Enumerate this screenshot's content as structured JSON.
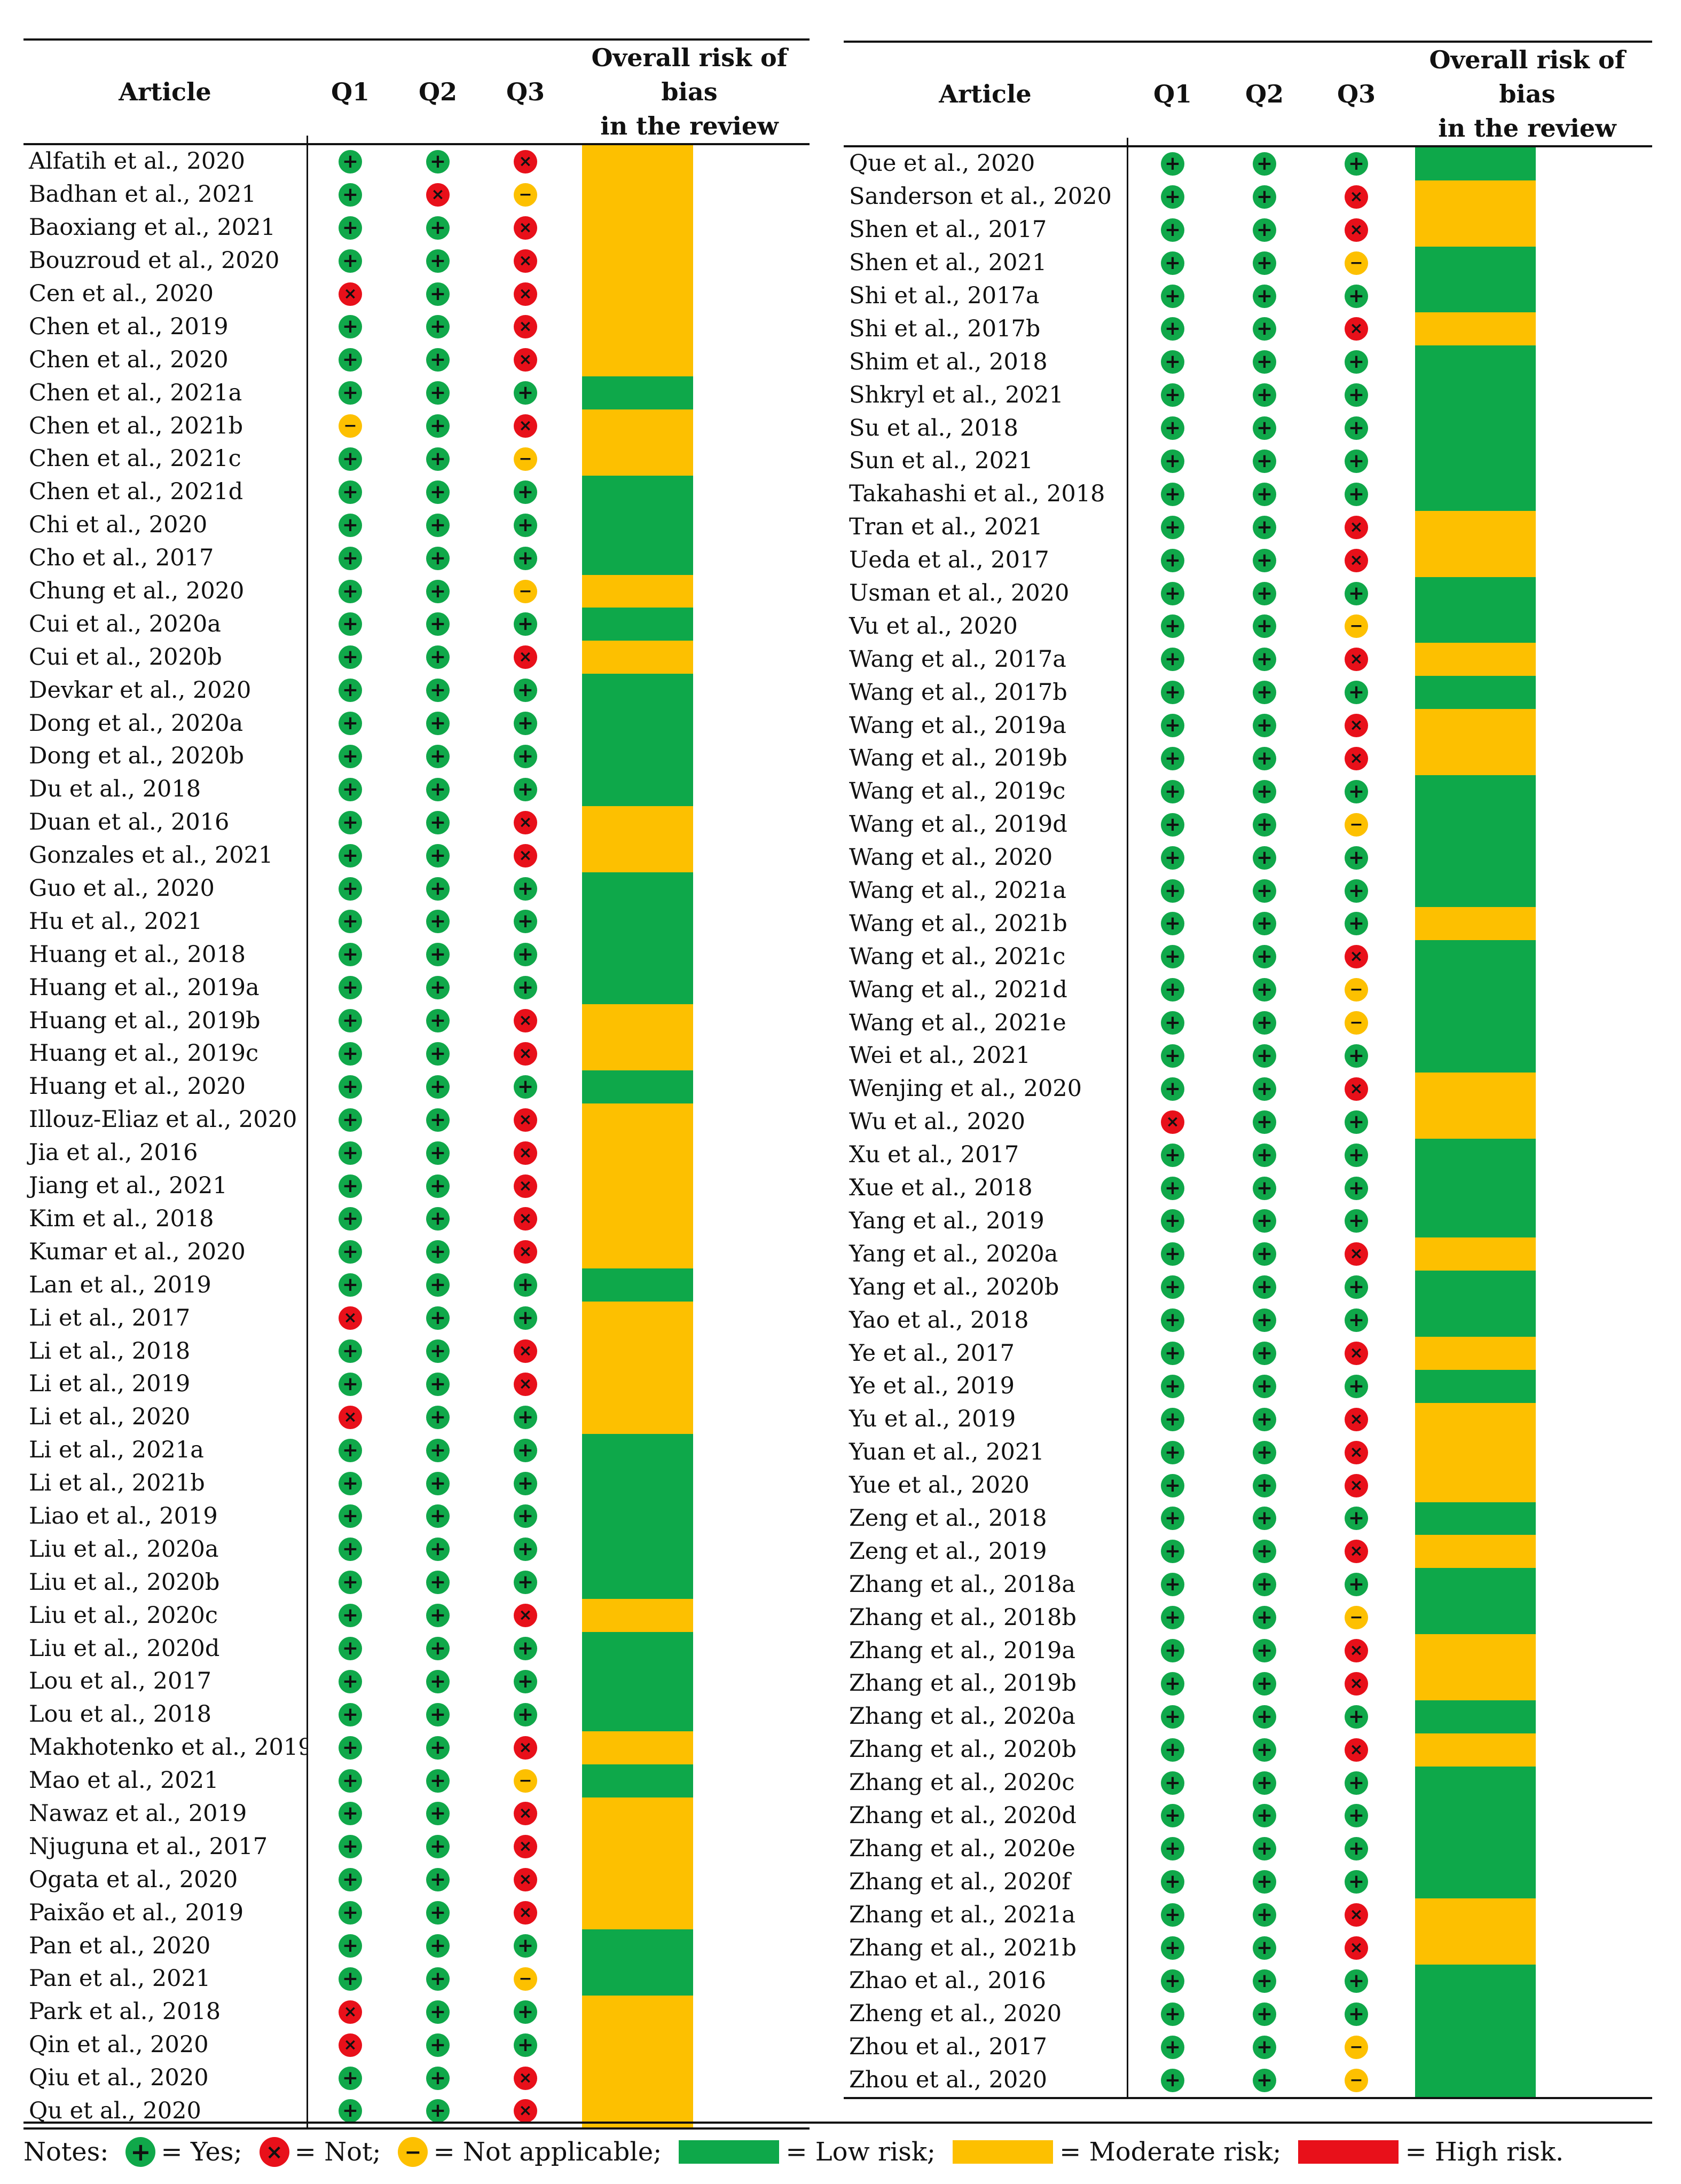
{
  "headers": {
    "article": "Article",
    "q1": "Q1",
    "q2": "Q2",
    "q3": "Q3",
    "overall_line1": "Overall risk of bias",
    "overall_line2": "in the review"
  },
  "legend": {
    "notes_label": "Notes:",
    "yes_label": "= Yes;",
    "not_label": "= Not;",
    "na_label": "= Not applicable;",
    "low_label": "= Low risk;",
    "moderate_label": "= Moderate risk;",
    "high_label": "= High risk."
  },
  "colors": {
    "yes": "#10a84a",
    "not": "#e8101a",
    "na": "#fdc000",
    "low": "#0ea84a",
    "moderate": "#fdc000",
    "high": "#e8101a"
  },
  "left_rows": [
    [
      "Alfatih et al., 2020",
      "yes",
      "yes",
      "not",
      "moderate"
    ],
    [
      "Badhan et al., 2021",
      "yes",
      "not",
      "na",
      "moderate"
    ],
    [
      "Baoxiang et al., 2021",
      "yes",
      "yes",
      "not",
      "moderate"
    ],
    [
      "Bouzroud et al., 2020",
      "yes",
      "yes",
      "not",
      "moderate"
    ],
    [
      "Cen et al., 2020",
      "not",
      "yes",
      "not",
      "moderate"
    ],
    [
      "Chen et al., 2019",
      "yes",
      "yes",
      "not",
      "moderate"
    ],
    [
      "Chen et al., 2020",
      "yes",
      "yes",
      "not",
      "moderate"
    ],
    [
      "Chen et al., 2021a",
      "yes",
      "yes",
      "yes",
      "low"
    ],
    [
      "Chen et al., 2021b",
      "na",
      "yes",
      "not",
      "moderate"
    ],
    [
      "Chen et al., 2021c",
      "yes",
      "yes",
      "na",
      "moderate"
    ],
    [
      "Chen et al., 2021d",
      "yes",
      "yes",
      "yes",
      "low"
    ],
    [
      "Chi et al., 2020",
      "yes",
      "yes",
      "yes",
      "low"
    ],
    [
      "Cho et al., 2017",
      "yes",
      "yes",
      "yes",
      "low"
    ],
    [
      "Chung et al., 2020",
      "yes",
      "yes",
      "na",
      "moderate"
    ],
    [
      "Cui et al., 2020a",
      "yes",
      "yes",
      "yes",
      "low"
    ],
    [
      "Cui et al., 2020b",
      "yes",
      "yes",
      "not",
      "moderate"
    ],
    [
      "Devkar et al., 2020",
      "yes",
      "yes",
      "yes",
      "low"
    ],
    [
      "Dong et al., 2020a",
      "yes",
      "yes",
      "yes",
      "low"
    ],
    [
      "Dong et al., 2020b",
      "yes",
      "yes",
      "yes",
      "low"
    ],
    [
      "Du et al., 2018",
      "yes",
      "yes",
      "yes",
      "low"
    ],
    [
      "Duan et al., 2016",
      "yes",
      "yes",
      "not",
      "moderate"
    ],
    [
      "Gonzales et al., 2021",
      "yes",
      "yes",
      "not",
      "moderate"
    ],
    [
      "Guo et al., 2020",
      "yes",
      "yes",
      "yes",
      "low"
    ],
    [
      "Hu et al., 2021",
      "yes",
      "yes",
      "yes",
      "low"
    ],
    [
      "Huang et al., 2018",
      "yes",
      "yes",
      "yes",
      "low"
    ],
    [
      "Huang et al., 2019a",
      "yes",
      "yes",
      "yes",
      "low"
    ],
    [
      "Huang et al., 2019b",
      "yes",
      "yes",
      "not",
      "moderate"
    ],
    [
      "Huang et al., 2019c",
      "yes",
      "yes",
      "not",
      "moderate"
    ],
    [
      "Huang et al., 2020",
      "yes",
      "yes",
      "yes",
      "low"
    ],
    [
      "Illouz-Eliaz et al., 2020",
      "yes",
      "yes",
      "not",
      "moderate"
    ],
    [
      "Jia et al., 2016",
      "yes",
      "yes",
      "not",
      "moderate"
    ],
    [
      "Jiang et al., 2021",
      "yes",
      "yes",
      "not",
      "moderate"
    ],
    [
      "Kim et al., 2018",
      "yes",
      "yes",
      "not",
      "moderate"
    ],
    [
      "Kumar et al., 2020",
      "yes",
      "yes",
      "not",
      "moderate"
    ],
    [
      "Lan et al., 2019",
      "yes",
      "yes",
      "yes",
      "low"
    ],
    [
      "Li et al., 2017",
      "not",
      "yes",
      "yes",
      "moderate"
    ],
    [
      "Li et al., 2018",
      "yes",
      "yes",
      "not",
      "moderate"
    ],
    [
      "Li et al., 2019",
      "yes",
      "yes",
      "not",
      "moderate"
    ],
    [
      "Li et al., 2020",
      "not",
      "yes",
      "yes",
      "moderate"
    ],
    [
      "Li et al., 2021a",
      "yes",
      "yes",
      "yes",
      "low"
    ],
    [
      "Li et al., 2021b",
      "yes",
      "yes",
      "yes",
      "low"
    ],
    [
      "Liao et al., 2019",
      "yes",
      "yes",
      "yes",
      "low"
    ],
    [
      "Liu et al., 2020a",
      "yes",
      "yes",
      "yes",
      "low"
    ],
    [
      "Liu et al., 2020b",
      "yes",
      "yes",
      "yes",
      "low"
    ],
    [
      "Liu et al., 2020c",
      "yes",
      "yes",
      "not",
      "moderate"
    ],
    [
      "Liu et al., 2020d",
      "yes",
      "yes",
      "yes",
      "low"
    ],
    [
      "Lou et al., 2017",
      "yes",
      "yes",
      "yes",
      "low"
    ],
    [
      "Lou et al., 2018",
      "yes",
      "yes",
      "yes",
      "low"
    ],
    [
      "Makhotenko et al., 2019",
      "yes",
      "yes",
      "not",
      "moderate"
    ],
    [
      "Mao et al., 2021",
      "yes",
      "yes",
      "na",
      "low"
    ],
    [
      "Nawaz et al., 2019",
      "yes",
      "yes",
      "not",
      "moderate"
    ],
    [
      "Njuguna et al., 2017",
      "yes",
      "yes",
      "not",
      "moderate"
    ],
    [
      "Ogata et al., 2020",
      "yes",
      "yes",
      "not",
      "moderate"
    ],
    [
      "Paixão et al., 2019",
      "yes",
      "yes",
      "not",
      "moderate"
    ],
    [
      "Pan et al., 2020",
      "yes",
      "yes",
      "yes",
      "low"
    ],
    [
      "Pan et al., 2021",
      "yes",
      "yes",
      "na",
      "low"
    ],
    [
      "Park et al., 2018",
      "not",
      "yes",
      "yes",
      "moderate"
    ],
    [
      "Qin et al., 2020",
      "not",
      "yes",
      "yes",
      "moderate"
    ],
    [
      "Qiu et al., 2020",
      "yes",
      "yes",
      "not",
      "moderate"
    ],
    [
      "Qu et al., 2020",
      "yes",
      "yes",
      "not",
      "moderate"
    ]
  ],
  "right_rows": [
    [
      "Que et al., 2020",
      "yes",
      "yes",
      "yes",
      "low"
    ],
    [
      "Sanderson et al., 2020",
      "yes",
      "yes",
      "not",
      "moderate"
    ],
    [
      "Shen et al., 2017",
      "yes",
      "yes",
      "not",
      "moderate"
    ],
    [
      "Shen et al., 2021",
      "yes",
      "yes",
      "na",
      "low"
    ],
    [
      "Shi et al., 2017a",
      "yes",
      "yes",
      "yes",
      "low"
    ],
    [
      "Shi et al., 2017b",
      "yes",
      "yes",
      "not",
      "moderate"
    ],
    [
      "Shim et al., 2018",
      "yes",
      "yes",
      "yes",
      "low"
    ],
    [
      "Shkryl et al., 2021",
      "yes",
      "yes",
      "yes",
      "low"
    ],
    [
      "Su et al., 2018",
      "yes",
      "yes",
      "yes",
      "low"
    ],
    [
      "Sun et al., 2021",
      "yes",
      "yes",
      "yes",
      "low"
    ],
    [
      "Takahashi et al., 2018",
      "yes",
      "yes",
      "yes",
      "low"
    ],
    [
      "Tran et al., 2021",
      "yes",
      "yes",
      "not",
      "moderate"
    ],
    [
      "Ueda et al., 2017",
      "yes",
      "yes",
      "not",
      "moderate"
    ],
    [
      "Usman et al., 2020",
      "yes",
      "yes",
      "yes",
      "low"
    ],
    [
      "Vu et al., 2020",
      "yes",
      "yes",
      "na",
      "low"
    ],
    [
      "Wang et al., 2017a",
      "yes",
      "yes",
      "not",
      "moderate"
    ],
    [
      "Wang et al., 2017b",
      "yes",
      "yes",
      "yes",
      "low"
    ],
    [
      "Wang et al., 2019a",
      "yes",
      "yes",
      "not",
      "moderate"
    ],
    [
      "Wang et al., 2019b",
      "yes",
      "yes",
      "not",
      "moderate"
    ],
    [
      "Wang et al., 2019c",
      "yes",
      "yes",
      "yes",
      "low"
    ],
    [
      "Wang et al., 2019d",
      "yes",
      "yes",
      "na",
      "low"
    ],
    [
      "Wang et al., 2020",
      "yes",
      "yes",
      "yes",
      "low"
    ],
    [
      "Wang et al., 2021a",
      "yes",
      "yes",
      "yes",
      "low"
    ],
    [
      "Wang et al., 2021b",
      "yes",
      "yes",
      "yes",
      "moderate"
    ],
    [
      "Wang et al., 2021c",
      "yes",
      "yes",
      "not",
      "low"
    ],
    [
      "Wang et al., 2021d",
      "yes",
      "yes",
      "na",
      "low"
    ],
    [
      "Wang et al., 2021e",
      "yes",
      "yes",
      "na",
      "low"
    ],
    [
      "Wei et al., 2021",
      "yes",
      "yes",
      "yes",
      "low"
    ],
    [
      "Wenjing et al., 2020",
      "yes",
      "yes",
      "not",
      "moderate"
    ],
    [
      "Wu et al., 2020",
      "not",
      "yes",
      "yes",
      "moderate"
    ],
    [
      "Xu et al., 2017",
      "yes",
      "yes",
      "yes",
      "low"
    ],
    [
      "Xue et al., 2018",
      "yes",
      "yes",
      "yes",
      "low"
    ],
    [
      "Yang et al., 2019",
      "yes",
      "yes",
      "yes",
      "low"
    ],
    [
      "Yang et al., 2020a",
      "yes",
      "yes",
      "not",
      "moderate"
    ],
    [
      "Yang et al., 2020b",
      "yes",
      "yes",
      "yes",
      "low"
    ],
    [
      "Yao et al., 2018",
      "yes",
      "yes",
      "yes",
      "low"
    ],
    [
      "Ye et al., 2017",
      "yes",
      "yes",
      "not",
      "moderate"
    ],
    [
      "Ye et al., 2019",
      "yes",
      "yes",
      "yes",
      "low"
    ],
    [
      "Yu et al., 2019",
      "yes",
      "yes",
      "not",
      "moderate"
    ],
    [
      "Yuan et al., 2021",
      "yes",
      "yes",
      "not",
      "moderate"
    ],
    [
      "Yue et al., 2020",
      "yes",
      "yes",
      "not",
      "moderate"
    ],
    [
      "Zeng et al., 2018",
      "yes",
      "yes",
      "yes",
      "low"
    ],
    [
      "Zeng et al., 2019",
      "yes",
      "yes",
      "not",
      "moderate"
    ],
    [
      "Zhang et al., 2018a",
      "yes",
      "yes",
      "yes",
      "low"
    ],
    [
      "Zhang et al., 2018b",
      "yes",
      "yes",
      "na",
      "low"
    ],
    [
      "Zhang et al., 2019a",
      "yes",
      "yes",
      "not",
      "moderate"
    ],
    [
      "Zhang et al., 2019b",
      "yes",
      "yes",
      "not",
      "moderate"
    ],
    [
      "Zhang et al., 2020a",
      "yes",
      "yes",
      "yes",
      "low"
    ],
    [
      "Zhang et al., 2020b",
      "yes",
      "yes",
      "not",
      "moderate"
    ],
    [
      "Zhang et al., 2020c",
      "yes",
      "yes",
      "yes",
      "low"
    ],
    [
      "Zhang et al., 2020d",
      "yes",
      "yes",
      "yes",
      "low"
    ],
    [
      "Zhang et al., 2020e",
      "yes",
      "yes",
      "yes",
      "low"
    ],
    [
      "Zhang et al., 2020f",
      "yes",
      "yes",
      "yes",
      "low"
    ],
    [
      "Zhang et al., 2021a",
      "yes",
      "yes",
      "not",
      "moderate"
    ],
    [
      "Zhang et al., 2021b",
      "yes",
      "yes",
      "not",
      "moderate"
    ],
    [
      "Zhao et al., 2016",
      "yes",
      "yes",
      "yes",
      "low"
    ],
    [
      "Zheng et al., 2020",
      "yes",
      "yes",
      "yes",
      "low"
    ],
    [
      "Zhou et al., 2017",
      "yes",
      "yes",
      "na",
      "low"
    ],
    [
      "Zhou et al., 2020",
      "yes",
      "yes",
      "na",
      "low"
    ]
  ]
}
